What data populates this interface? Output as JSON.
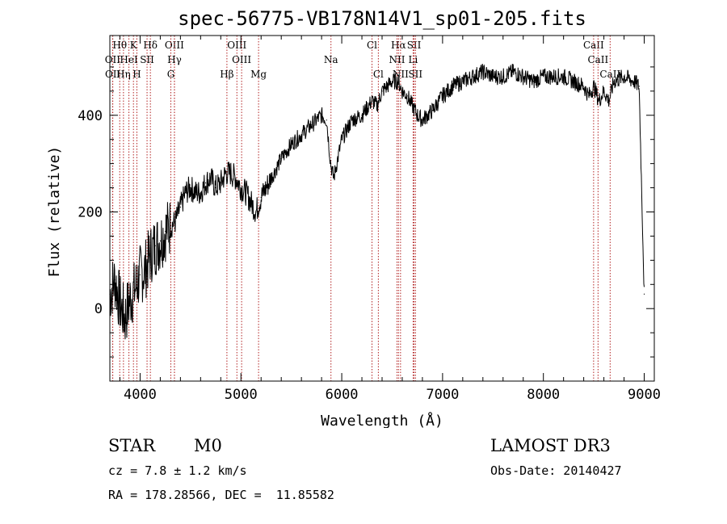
{
  "chart_data": {
    "type": "line",
    "title": "spec-56775-VB178N14V1_sp01-205.fits",
    "xlabel": "Wavelength (Å)",
    "ylabel": "Flux (relative)",
    "xlim": [
      3700,
      9100
    ],
    "ylim": [
      -150,
      565
    ],
    "x_ticks": [
      4000,
      5000,
      6000,
      7000,
      8000,
      9000
    ],
    "x_tick_labels": [
      "4000",
      "5000",
      "6000",
      "7000",
      "8000",
      "9000"
    ],
    "y_ticks": [
      0,
      200,
      400
    ],
    "y_tick_labels": [
      "0",
      "200",
      "400"
    ],
    "grid": false,
    "line_color": "#000000",
    "marker_color": "#b22222",
    "series": [
      {
        "name": "flux",
        "x": [
          3700,
          3750,
          3800,
          3850,
          3900,
          3950,
          4000,
          4050,
          4100,
          4150,
          4200,
          4250,
          4300,
          4350,
          4400,
          4450,
          4500,
          4550,
          4600,
          4650,
          4700,
          4750,
          4800,
          4850,
          4900,
          4950,
          5000,
          5050,
          5100,
          5150,
          5200,
          5300,
          5400,
          5500,
          5600,
          5700,
          5800,
          5850,
          5890,
          5920,
          6000,
          6100,
          6200,
          6300,
          6350,
          6400,
          6500,
          6560,
          6600,
          6650,
          6700,
          6750,
          6800,
          6900,
          7000,
          7100,
          7200,
          7300,
          7400,
          7500,
          7600,
          7700,
          7800,
          7900,
          8000,
          8100,
          8200,
          8300,
          8400,
          8450,
          8500,
          8550,
          8600,
          8650,
          8700,
          8800,
          8900,
          8950,
          9000
        ],
        "values": [
          30,
          60,
          10,
          -20,
          20,
          40,
          70,
          80,
          110,
          130,
          140,
          160,
          170,
          180,
          210,
          240,
          250,
          240,
          240,
          260,
          270,
          250,
          260,
          280,
          280,
          270,
          250,
          240,
          220,
          200,
          230,
          270,
          310,
          340,
          360,
          380,
          400,
          390,
          300,
          270,
          350,
          390,
          400,
          430,
          420,
          450,
          470,
          470,
          450,
          440,
          420,
          400,
          390,
          410,
          440,
          460,
          470,
          480,
          490,
          480,
          480,
          490,
          480,
          470,
          480,
          480,
          480,
          470,
          460,
          440,
          460,
          430,
          450,
          430,
          470,
          480,
          470,
          460,
          30
        ]
      }
    ],
    "markers": [
      {
        "label": "Hθ",
        "wavelength": 3798,
        "row": 1
      },
      {
        "label": "K",
        "wavelength": 3934,
        "row": 1
      },
      {
        "label": "Hδ",
        "wavelength": 4102,
        "row": 1
      },
      {
        "label": "OIII",
        "wavelength": 4340,
        "row": 1
      },
      {
        "label": "OIII",
        "wavelength": 4960,
        "row": 1
      },
      {
        "label": "Cl",
        "wavelength": 6300,
        "row": 1
      },
      {
        "label": "Hα",
        "wavelength": 6563,
        "row": 1
      },
      {
        "label": "SII",
        "wavelength": 6717,
        "row": 1
      },
      {
        "label": "CaII",
        "wavelength": 8498,
        "row": 1
      },
      {
        "label": "OII",
        "wavelength": 3727,
        "row": 2
      },
      {
        "label": "HeI",
        "wavelength": 3889,
        "row": 2
      },
      {
        "label": "SII",
        "wavelength": 4069,
        "row": 2
      },
      {
        "label": "Hγ",
        "wavelength": 4341,
        "row": 2
      },
      {
        "label": "OIII",
        "wavelength": 5007,
        "row": 2
      },
      {
        "label": "Na",
        "wavelength": 5893,
        "row": 2
      },
      {
        "label": "NII",
        "wavelength": 6548,
        "row": 2
      },
      {
        "label": "Li",
        "wavelength": 6708,
        "row": 2
      },
      {
        "label": "CaII",
        "wavelength": 8542,
        "row": 2
      },
      {
        "label": "OII",
        "wavelength": 3729,
        "row": 3
      },
      {
        "label": "Hη",
        "wavelength": 3835,
        "row": 3
      },
      {
        "label": "H",
        "wavelength": 3968,
        "row": 3
      },
      {
        "label": "G",
        "wavelength": 4305,
        "row": 3
      },
      {
        "label": "Hβ",
        "wavelength": 4861,
        "row": 3
      },
      {
        "label": "Mg",
        "wavelength": 5175,
        "row": 3
      },
      {
        "label": "Cl",
        "wavelength": 6363,
        "row": 3
      },
      {
        "label": "NII",
        "wavelength": 6583,
        "row": 3
      },
      {
        "label": "SII",
        "wavelength": 6731,
        "row": 3
      },
      {
        "label": "CaII",
        "wavelength": 8662,
        "row": 3
      }
    ]
  },
  "info": {
    "object_class": "STAR",
    "subclass": "M0",
    "survey": "LAMOST DR3",
    "redshift": "cz = 7.8 ± 1.2 km/s",
    "obs_date": "Obs-Date: 20140427",
    "coords": "RA = 178.28566, DEC =  11.85582"
  }
}
